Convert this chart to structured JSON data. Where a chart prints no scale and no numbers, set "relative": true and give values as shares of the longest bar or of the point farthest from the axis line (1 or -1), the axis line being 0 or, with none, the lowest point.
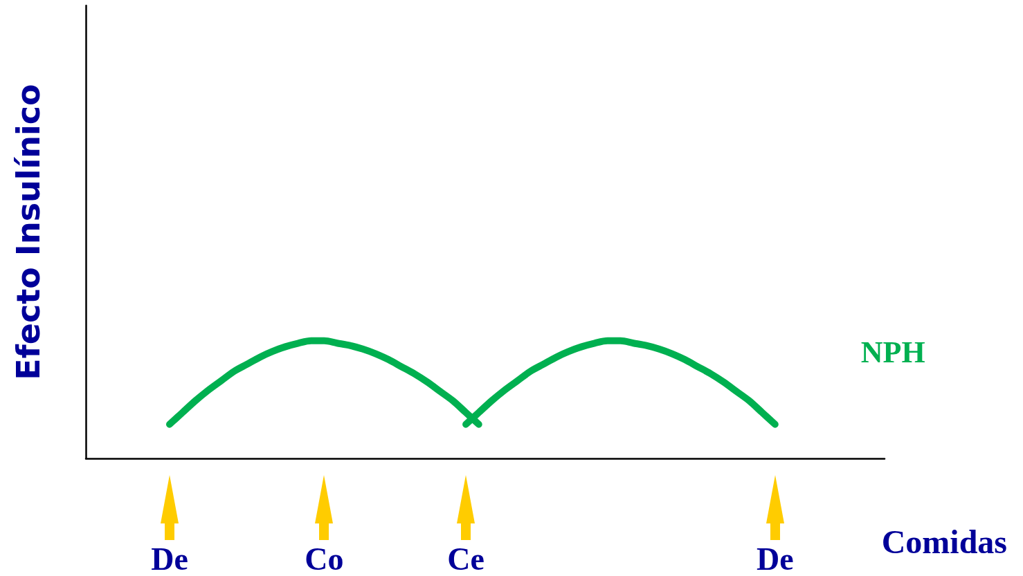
{
  "chart_data": {
    "type": "line",
    "relative": true,
    "ylabel": "Efecto Insulínico",
    "xlabel": "Comidas",
    "categories": [
      null,
      null,
      null,
      null,
      null,
      null,
      "De",
      null,
      null,
      null,
      null,
      null,
      null,
      null,
      null,
      null,
      null,
      null,
      "Co",
      null,
      null,
      null,
      null,
      null,
      null,
      null,
      null,
      null,
      null,
      "Ce",
      null,
      null,
      null,
      null,
      null,
      null,
      null,
      null,
      null,
      null,
      null,
      null,
      null,
      null,
      null,
      null,
      null,
      null,
      null,
      null,
      null,
      null,
      null,
      "De",
      null,
      null,
      null,
      null,
      null,
      null,
      null,
      null
    ],
    "tick_labels": "x",
    "line_style": "solid",
    "series": [
      {
        "color": "#00b050",
        "values": [
          null,
          null,
          null,
          null,
          null,
          null,
          0.29,
          0.39,
          0.49,
          0.58,
          0.66,
          0.74,
          0.8,
          0.86,
          0.91,
          0.95,
          0.98,
          1.0,
          1.0,
          0.98,
          0.96,
          0.93,
          0.89,
          0.84,
          0.78,
          0.72,
          0.65,
          0.57,
          0.49,
          0.39,
          0.29,
          null,
          null,
          null,
          null,
          null,
          null,
          null,
          null,
          null,
          null,
          null,
          null,
          null,
          null,
          null,
          null,
          null,
          null,
          null,
          null,
          null,
          null,
          null,
          null,
          null,
          null,
          null,
          null,
          null,
          null,
          null
        ]
      },
      {
        "name": "NPH",
        "color": "#00b050",
        "values": [
          null,
          null,
          null,
          null,
          null,
          null,
          null,
          null,
          null,
          null,
          null,
          null,
          null,
          null,
          null,
          null,
          null,
          null,
          null,
          null,
          null,
          null,
          null,
          null,
          null,
          null,
          null,
          null,
          null,
          0.29,
          0.39,
          0.49,
          0.58,
          0.66,
          0.74,
          0.8,
          0.86,
          0.91,
          0.95,
          0.98,
          1.0,
          1.0,
          0.98,
          0.96,
          0.93,
          0.89,
          0.84,
          0.78,
          0.72,
          0.65,
          0.57,
          0.49,
          0.39,
          0.29,
          null,
          null,
          null,
          null,
          null,
          null,
          null,
          null
        ]
      }
    ]
  }
}
